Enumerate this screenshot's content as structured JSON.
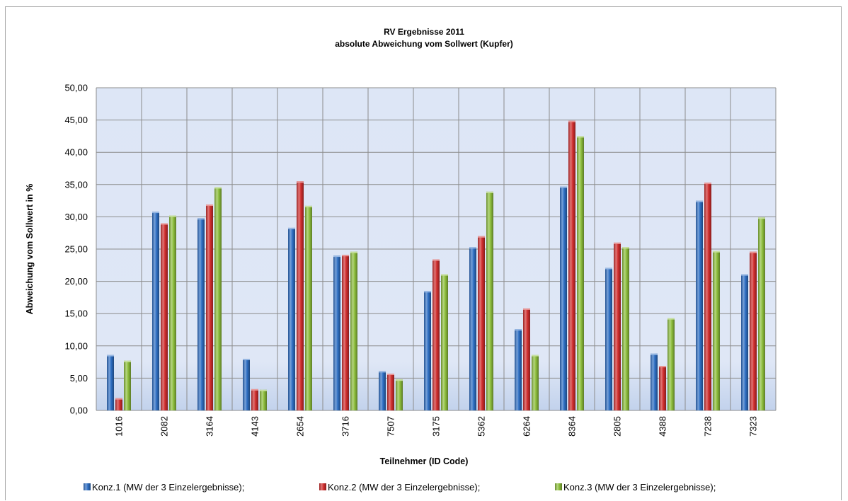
{
  "chart_data": {
    "type": "bar",
    "title": "RV Ergebnisse  2011",
    "subtitle": "absolute Abweichung  vom Sollwert (Kupfer)",
    "xlabel": "Teilnehmer (ID Code)",
    "ylabel": "Abweichung vom Sollwert in %",
    "ylim": [
      0,
      50
    ],
    "ytick_step": 5,
    "ytick_labels": [
      "0,00",
      "5,00",
      "10,00",
      "15,00",
      "20,00",
      "25,00",
      "30,00",
      "35,00",
      "40,00",
      "45,00",
      "50,00"
    ],
    "grid": true,
    "legend_position": "bottom",
    "categories": [
      "1016",
      "2082",
      "3164",
      "4143",
      "2654",
      "3716",
      "7507",
      "3175",
      "5362",
      "6264",
      "8364",
      "2805",
      "4388",
      "7238",
      "7323"
    ],
    "series": [
      {
        "name": "Konz.1 (MW  der 3  Einzelergebnisse);",
        "color": "#2E6FC4",
        "values": [
          8.6,
          30.8,
          29.8,
          8.0,
          28.3,
          24.0,
          6.1,
          18.5,
          25.3,
          12.6,
          34.7,
          22.1,
          8.8,
          32.5,
          21.1
        ]
      },
      {
        "name": "Konz.2 (MW  der 3  Einzelergebnisse);",
        "color": "#D12E2E",
        "values": [
          1.9,
          29.0,
          31.9,
          3.3,
          35.5,
          24.1,
          5.7,
          23.4,
          27.0,
          15.8,
          44.9,
          26.0,
          6.9,
          35.3,
          24.6
        ]
      },
      {
        "name": "Konz.3 (MW  der 3  Einzelergebnisse);",
        "color": "#8DBE3C",
        "values": [
          7.7,
          30.2,
          34.6,
          3.2,
          31.7,
          24.6,
          4.8,
          21.1,
          33.9,
          8.6,
          42.5,
          25.3,
          14.3,
          24.7,
          29.9
        ]
      }
    ]
  }
}
